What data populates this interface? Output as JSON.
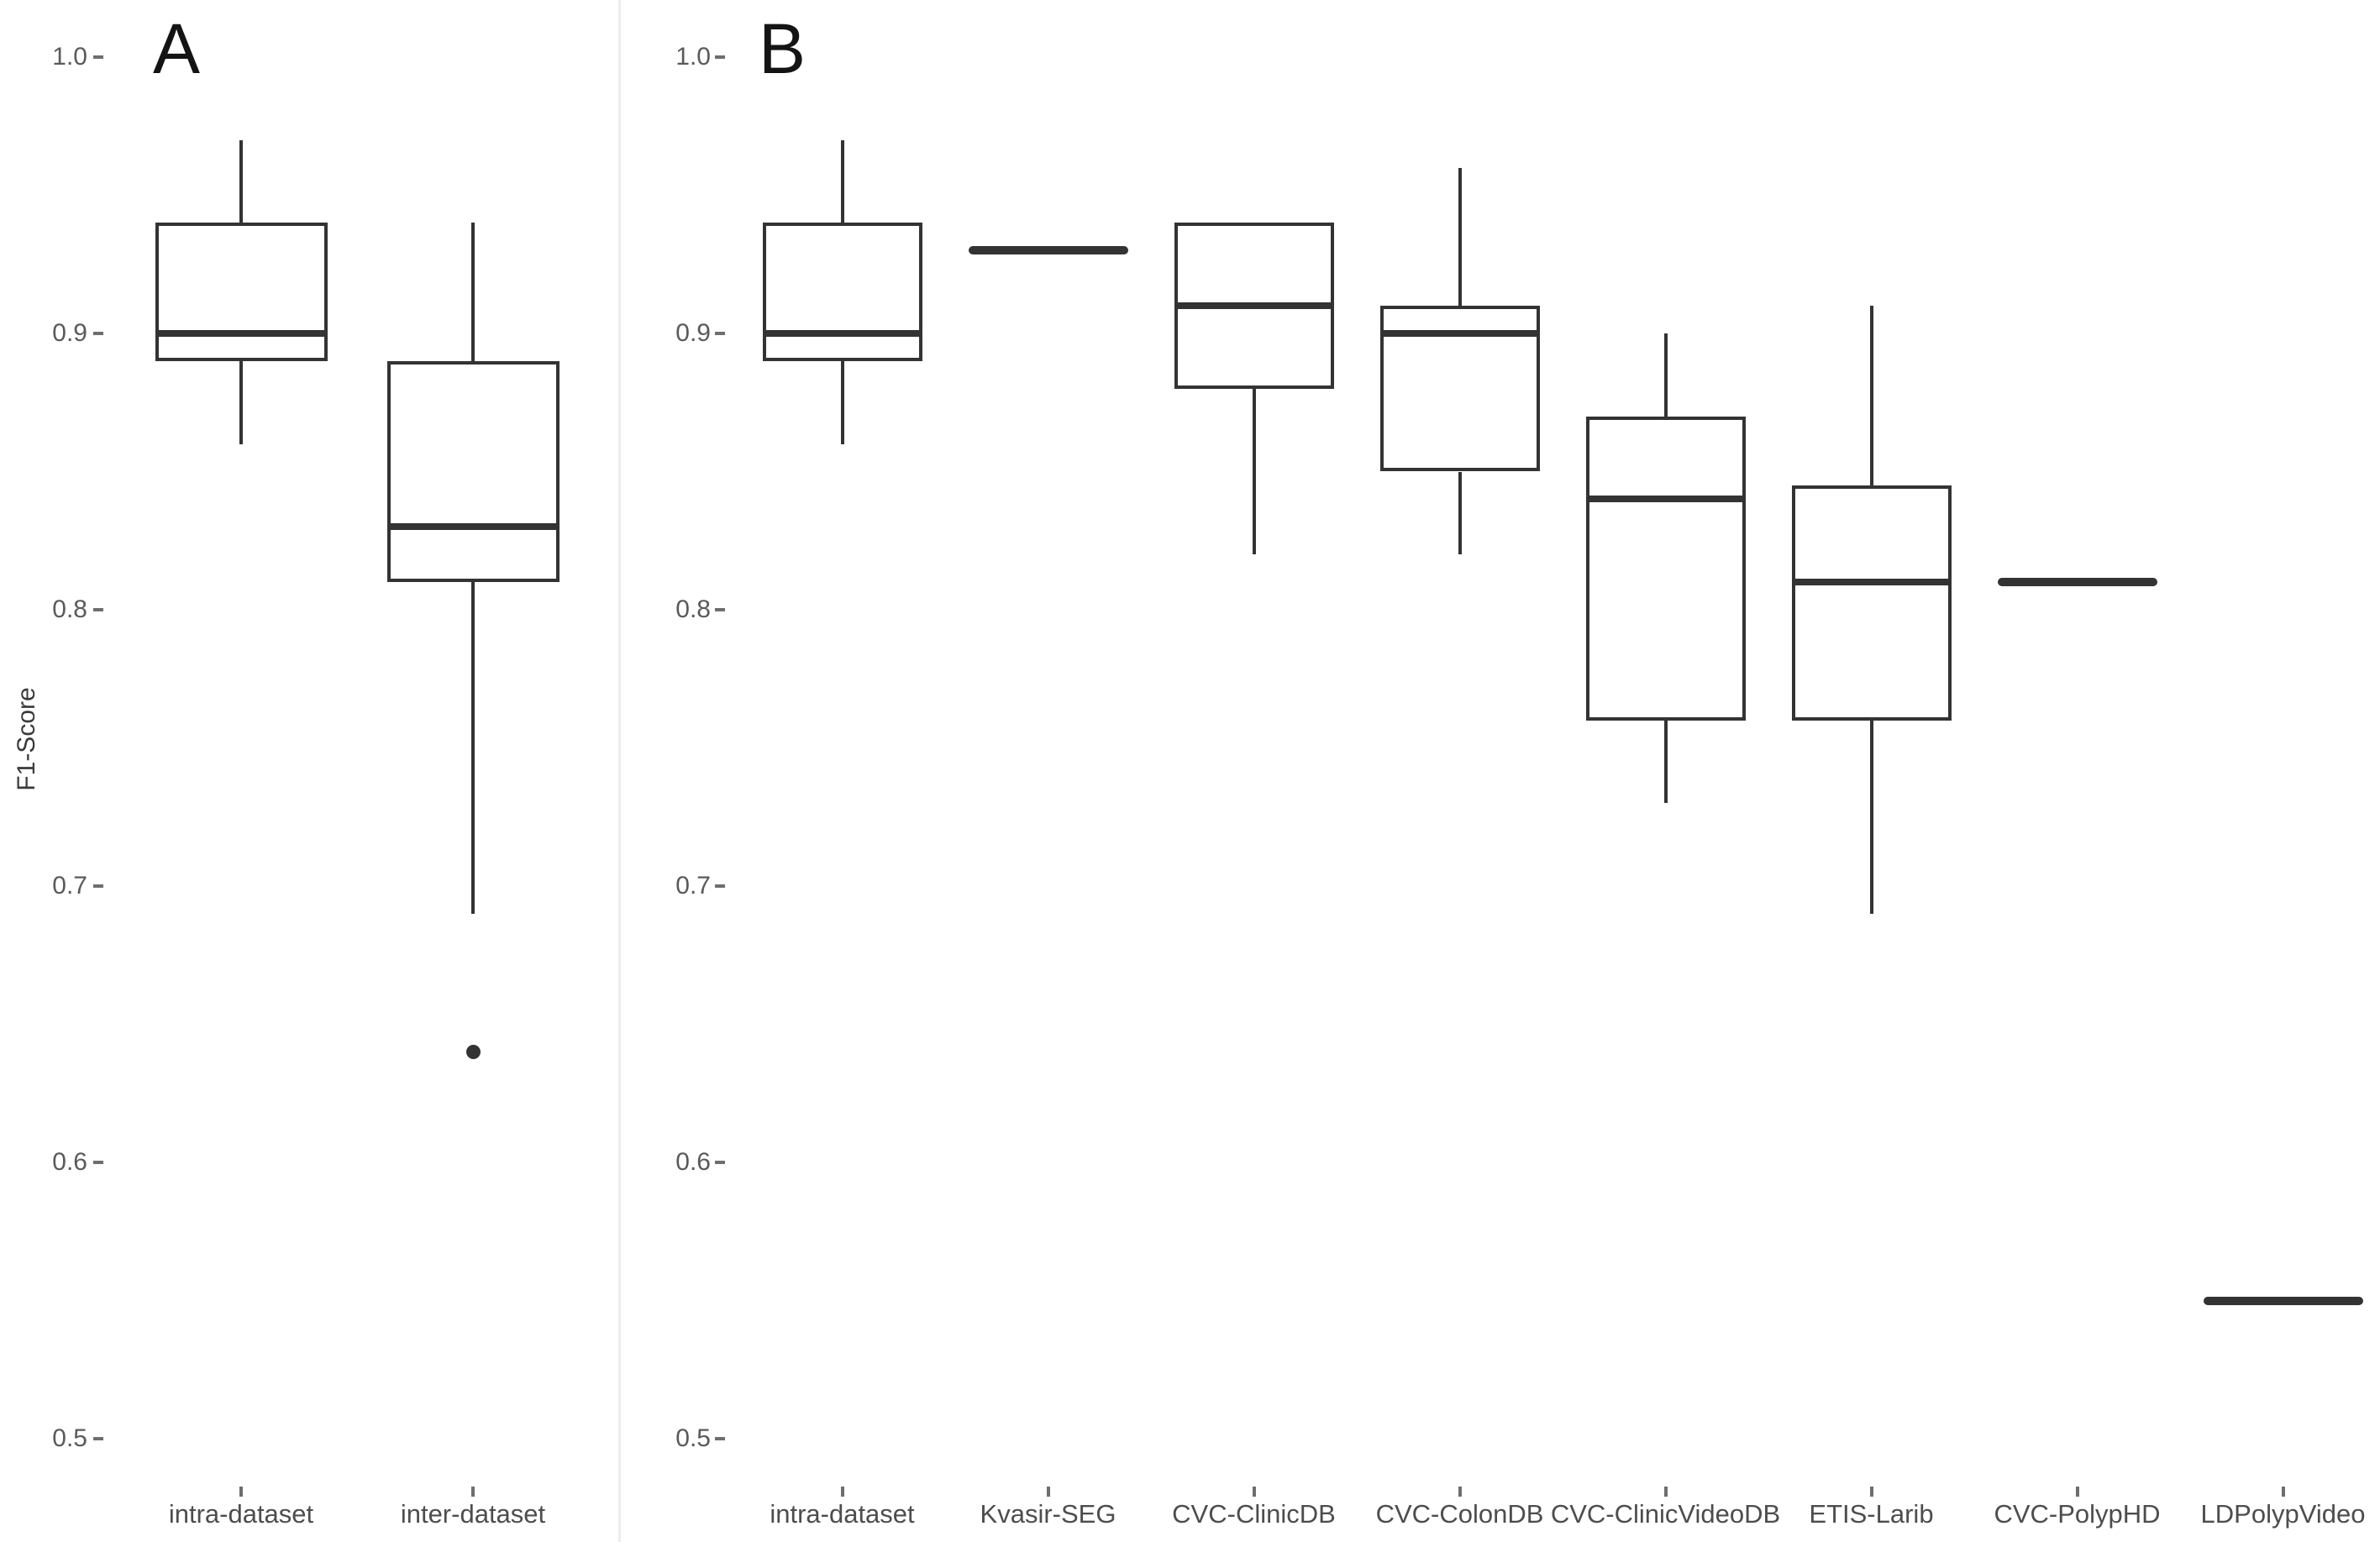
{
  "colors": {
    "box_stroke": "#333333",
    "tick_text": "#5a5a5a",
    "tick_mark": "#6e6e6e",
    "category_text": "#4d4d4d",
    "separator": "#ededed",
    "background": "#ffffff"
  },
  "chart_data": [
    {
      "type": "boxplot",
      "title": "A",
      "xlabel": "",
      "ylabel": "F1-Score",
      "ylim": [
        0.45,
        1.03
      ],
      "grid": false,
      "legend": false,
      "yticks": [
        1.0,
        0.9,
        0.8,
        0.7,
        0.6,
        0.5
      ],
      "ytick_labels": [
        "1.0",
        "0.9",
        "0.8",
        "0.7",
        "0.6",
        "0.5"
      ],
      "boxes": [
        {
          "category": "intra-dataset",
          "whisker_low": 0.86,
          "q1": 0.89,
          "median": 0.9,
          "q3": 0.94,
          "whisker_high": 0.97,
          "outliers": []
        },
        {
          "category": "inter-dataset",
          "whisker_low": 0.69,
          "q1": 0.81,
          "median": 0.83,
          "q3": 0.89,
          "whisker_high": 0.94,
          "outliers": [
            0.64
          ]
        }
      ]
    },
    {
      "type": "boxplot",
      "title": "B",
      "xlabel": "",
      "ylabel": "F1-Score",
      "ylim": [
        0.45,
        1.03
      ],
      "grid": false,
      "legend": false,
      "yticks": [
        1.0,
        0.9,
        0.8,
        0.7,
        0.6,
        0.5
      ],
      "ytick_labels": [
        "1.0",
        "0.9",
        "0.8",
        "0.7",
        "0.6",
        "0.5"
      ],
      "boxes": [
        {
          "category": "intra-dataset",
          "whisker_low": 0.86,
          "q1": 0.89,
          "median": 0.9,
          "q3": 0.94,
          "whisker_high": 0.97,
          "outliers": []
        },
        {
          "category": "Kvasir-SEG",
          "single_value": 0.93
        },
        {
          "category": "CVC-ClinicDB",
          "whisker_low": 0.82,
          "q1": 0.88,
          "median": 0.91,
          "q3": 0.94,
          "whisker_high": 0.94,
          "outliers": []
        },
        {
          "category": "CVC-ColonDB",
          "whisker_low": 0.82,
          "q1": 0.85,
          "median": 0.9,
          "q3": 0.91,
          "whisker_high": 0.96,
          "outliers": []
        },
        {
          "category": "CVC-ClinicVideoDB",
          "whisker_low": 0.73,
          "q1": 0.76,
          "median": 0.84,
          "q3": 0.87,
          "whisker_high": 0.9,
          "outliers": []
        },
        {
          "category": "ETIS-Larib",
          "whisker_low": 0.69,
          "q1": 0.76,
          "median": 0.81,
          "q3": 0.845,
          "whisker_high": 0.91,
          "outliers": []
        },
        {
          "category": "CVC-PolypHD",
          "single_value": 0.81
        },
        {
          "category": "LDPolypVideo",
          "single_value": 0.55
        }
      ]
    }
  ]
}
